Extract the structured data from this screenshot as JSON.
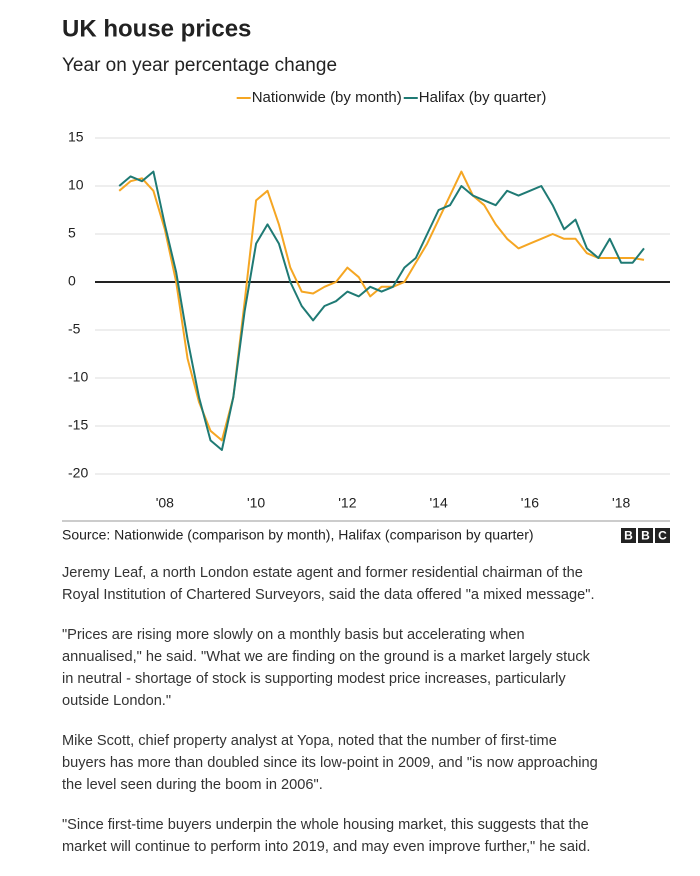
{
  "chart_data": {
    "type": "line",
    "title": "UK house prices",
    "subtitle": "Year on year percentage change",
    "x": [
      2007,
      2007.25,
      2007.5,
      2007.75,
      2008,
      2008.25,
      2008.5,
      2008.75,
      2009,
      2009.25,
      2009.5,
      2009.75,
      2010,
      2010.25,
      2010.5,
      2010.75,
      2011,
      2011.25,
      2011.5,
      2011.75,
      2012,
      2012.25,
      2012.5,
      2012.75,
      2013,
      2013.25,
      2013.5,
      2013.75,
      2014,
      2014.25,
      2014.5,
      2014.75,
      2015,
      2015.25,
      2015.5,
      2015.75,
      2016,
      2016.25,
      2016.5,
      2016.75,
      2017,
      2017.25,
      2017.5,
      2017.75,
      2018,
      2018.25,
      2018.5
    ],
    "series": [
      {
        "name": "Nationwide (by month)",
        "color": "#f5a623",
        "values": [
          9.5,
          10.5,
          10.8,
          9.5,
          5.5,
          0,
          -8,
          -12.5,
          -15.5,
          -16.5,
          -12,
          -2,
          8.5,
          9.5,
          6,
          1.5,
          -1,
          -1.2,
          -0.5,
          0,
          1.5,
          0.5,
          -1.5,
          -0.5,
          -0.5,
          0,
          2,
          4,
          6.5,
          9,
          11.5,
          9,
          8,
          6,
          4.5,
          3.5,
          4,
          4.5,
          5,
          4.5,
          4.5,
          3,
          2.5,
          2.5,
          2.5,
          2.5,
          2.3
        ]
      },
      {
        "name": "Halifax (by quarter)",
        "color": "#1f7a74",
        "values": [
          10,
          11,
          10.5,
          11.5,
          6,
          1,
          -6,
          -12,
          -16.5,
          -17.5,
          -12,
          -3,
          4,
          6,
          4,
          0,
          -2.5,
          -4,
          -2.5,
          -2,
          -1,
          -1.5,
          -0.5,
          -1,
          -0.5,
          1.5,
          2.5,
          5,
          7.5,
          8,
          10,
          9,
          8.5,
          8,
          9.5,
          9,
          9.5,
          10,
          8,
          5.5,
          6.5,
          3.5,
          2.5,
          4.5,
          2,
          2,
          3.5
        ]
      }
    ],
    "xlim": [
      2006.47,
      2019.07
    ],
    "xticks": [
      {
        "value": 2008,
        "label": "'08"
      },
      {
        "value": 2010,
        "label": "'10"
      },
      {
        "value": 2012,
        "label": "'12"
      },
      {
        "value": 2014,
        "label": "'14"
      },
      {
        "value": 2016,
        "label": "'16"
      },
      {
        "value": 2018,
        "label": "'18"
      }
    ],
    "ylim": [
      -20,
      15
    ],
    "yticks": [
      15,
      10,
      5,
      0,
      -5,
      -10,
      -15,
      -20
    ],
    "grid": true,
    "legend": "top",
    "source": "Source: Nationwide (comparison by month), Halifax (comparison by quarter)",
    "logo": [
      "B",
      "B",
      "C"
    ]
  },
  "article": {
    "paragraphs": [
      [
        "Jeremy Leaf, a north London estate agent and former residential chairman of the",
        "Royal Institution of Chartered Surveyors, said the data offered \"a mixed message\"."
      ],
      [
        "\"Prices are rising more slowly on a monthly basis but accelerating when",
        "annualised,\" he said. \"What we are finding on the ground is a market largely stuck",
        "in neutral - shortage of stock is supporting modest price increases, particularly",
        "outside London.\""
      ],
      [
        "Mike Scott, chief property analyst at Yopa, noted that the number of first-time",
        "buyers has more than doubled since its low-point in 2009, and \"is now approaching",
        "the level seen during the boom in 2006\"."
      ],
      [
        "\"Since first-time buyers underpin the whole housing market, this suggests that the",
        "market will continue to perform into 2019, and may even improve further,\" he said."
      ]
    ]
  }
}
